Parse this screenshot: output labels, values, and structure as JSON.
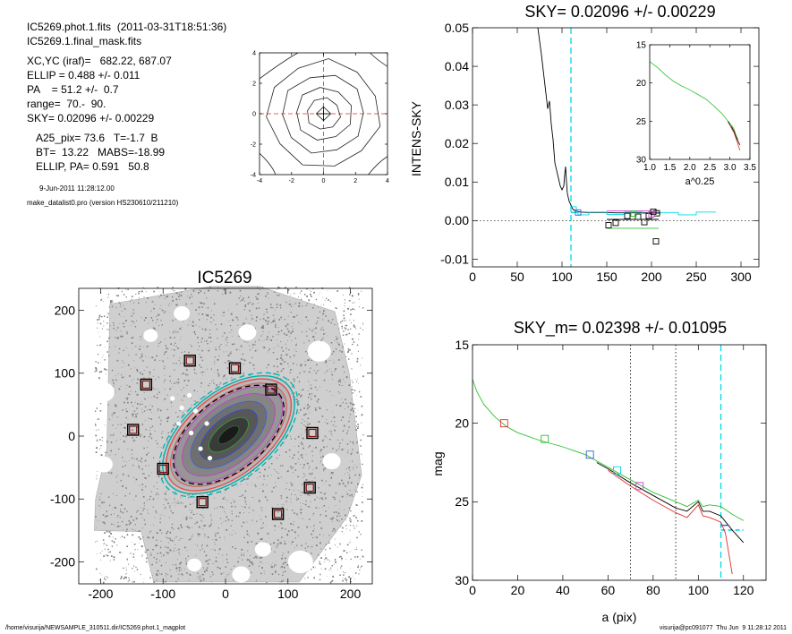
{
  "header": {
    "line1": "IC5269.phot.1.fits  (2011-03-31T18:51:36)",
    "line2": "IC5269.1.final_mask.fits",
    "xcyc": "XC,YC (iraf)=   682.22, 687.07",
    "ellip": "ELLIP = 0.488 +/- 0.011",
    "pa": "PA    = 51.2 +/-  0.7",
    "range": "range=  70.-  90.",
    "sky": "SKY= 0.02096 +/- 0.00229",
    "a25": "A25_pix= 73.6   T=-1.7  B",
    "bt": "BT=  13.22   MABS=-18.99",
    "ellip_pa": "ELLIP, PA= 0.591   50.8",
    "date": "9-Jun-2011 11:28:12.00",
    "program": "make_datalist0.pro (version HS230610/211210)"
  },
  "footer": {
    "left": "/home/visurija/NEWSAMPLE_310511.dir/IC5269.phot.1_magplot",
    "right": "visurija@pc091077  Thu Jun  9 11:28:12 2011"
  },
  "colors": {
    "cyan": "#00d8e8",
    "red": "#e0302a",
    "green": "#30c030",
    "blue": "#3060d0",
    "magenta": "#d040d0",
    "box": "#7a1010"
  },
  "chart_data": [
    {
      "id": "contour",
      "type": "contour",
      "xlim": [
        -4,
        4
      ],
      "ylim": [
        -4,
        4
      ],
      "xticks": [
        -4,
        -2,
        0,
        2,
        4
      ],
      "yticks": [
        -4,
        -2,
        0,
        2,
        4
      ],
      "contour_radii": [
        0.45,
        1.05,
        1.75,
        2.6,
        3.5
      ]
    },
    {
      "id": "sky_profile",
      "type": "line",
      "title": "SKY= 0.02096 +/- 0.00229",
      "ylabel": "INTENS-SKY",
      "xlim": [
        0,
        320
      ],
      "ylim": [
        -0.012,
        0.05
      ],
      "xticks": [
        0,
        50,
        100,
        150,
        200,
        250,
        300
      ],
      "yticks": [
        -0.01,
        0.0,
        0.01,
        0.02,
        0.03,
        0.04,
        0.05
      ],
      "ytick_labels": [
        "-0.01",
        "0.00",
        "0.01",
        "0.02",
        "0.03",
        "0.04",
        "0.05"
      ],
      "sky_line_x": 110,
      "series": [
        {
          "color": "black",
          "x": [
            73,
            77,
            81,
            84,
            86,
            88,
            90,
            92,
            94,
            96,
            98,
            100,
            102,
            103,
            104,
            105,
            106,
            107,
            108,
            110,
            112,
            115,
            120,
            130,
            140,
            150,
            160,
            175,
            190,
            205,
            210
          ],
          "y": [
            0.05,
            0.043,
            0.035,
            0.029,
            0.031,
            0.025,
            0.021,
            0.015,
            0.013,
            0.011,
            0.009,
            0.008,
            0.009,
            0.012,
            0.014,
            0.01,
            0.007,
            0.006,
            0.005,
            0.004,
            0.003,
            0.0025,
            0.0022,
            0.0021,
            0.0021,
            0.0021,
            0.002,
            0.002,
            0.002,
            0.002,
            0.002
          ]
        },
        {
          "color": "cyan",
          "x": [
            110,
            118,
            118,
            130,
            130,
            150,
            150,
            170,
            170,
            190,
            190,
            210,
            210,
            230,
            230,
            250,
            250,
            272
          ],
          "y": [
            0.002,
            0.002,
            0.0015,
            0.0015,
            0.0022,
            0.0022,
            0.0016,
            0.0016,
            0.0022,
            0.0022,
            0.0018,
            0.0018,
            0.0021,
            0.0021,
            0.0015,
            0.0015,
            0.0022,
            0.0022
          ]
        },
        {
          "color": "magenta",
          "x": [
            150,
            208
          ],
          "y": [
            0.0025,
            0.0025
          ]
        },
        {
          "color": "green",
          "x": [
            150,
            208
          ],
          "y": [
            -0.002,
            -0.002
          ]
        },
        {
          "color": "black",
          "x": [
            150,
            208
          ],
          "y": [
            0.0003,
            0.0003
          ]
        }
      ],
      "boxes": [
        {
          "color": "cyan",
          "x": 113,
          "y": 0.0029
        },
        {
          "color": "blue",
          "x": 118,
          "y": 0.0021
        },
        {
          "color": "black",
          "x": 152,
          "y": -0.0012
        },
        {
          "color": "black",
          "x": 160,
          "y": -0.0006
        },
        {
          "color": "black",
          "x": 173,
          "y": 0.0012
        },
        {
          "color": "black",
          "x": 185,
          "y": 0.001
        },
        {
          "color": "black",
          "x": 192,
          "y": -0.0004
        },
        {
          "color": "black",
          "x": 197,
          "y": 0.0012
        },
        {
          "color": "black",
          "x": 202,
          "y": 0.0023
        },
        {
          "color": "black",
          "x": 206,
          "y": 0.0019
        },
        {
          "color": "black",
          "x": 205,
          "y": -0.0054
        },
        {
          "color": "magenta",
          "x": 200,
          "y": 0.0016
        },
        {
          "color": "green",
          "x": 180,
          "y": 0.0018
        }
      ]
    },
    {
      "id": "sky_inset",
      "type": "line",
      "xlabel": "a^0.25",
      "xlim": [
        1.0,
        3.5
      ],
      "ylim": [
        15,
        30
      ],
      "y_inverted": true,
      "xticks": [
        1.0,
        1.5,
        2.0,
        2.5,
        3.0,
        3.5
      ],
      "xtick_labels": [
        "1.0",
        "1.5",
        "2.0",
        "2.5",
        "3.0",
        "3.5"
      ],
      "yticks": [
        15,
        20,
        25,
        30
      ],
      "series": [
        {
          "color": "green",
          "x": [
            1.0,
            1.2,
            1.4,
            1.6,
            1.8,
            2.0,
            2.2,
            2.4,
            2.6,
            2.8,
            2.95,
            3.05,
            3.1,
            3.15,
            3.2
          ],
          "y": [
            17.2,
            18.0,
            19.0,
            19.8,
            20.4,
            20.9,
            21.5,
            22.1,
            23.0,
            24.0,
            25.0,
            25.6,
            26.0,
            26.8,
            27.4
          ]
        },
        {
          "color": "black",
          "x": [
            2.95,
            3.0,
            3.05,
            3.1,
            3.15,
            3.2,
            3.25
          ],
          "y": [
            25.0,
            25.5,
            25.8,
            26.3,
            27.0,
            27.6,
            28.1
          ]
        },
        {
          "color": "red",
          "x": [
            3.0,
            3.05,
            3.1,
            3.15,
            3.2,
            3.25
          ],
          "y": [
            25.5,
            26.0,
            26.5,
            27.2,
            28.0,
            28.8
          ]
        }
      ]
    },
    {
      "id": "image",
      "type": "scatter",
      "title": "IC5269",
      "xlim": [
        -235,
        235
      ],
      "ylim": [
        -235,
        235
      ],
      "xticks": [
        -200,
        -100,
        0,
        100,
        200
      ],
      "yticks": [
        -200,
        -100,
        0,
        100,
        200
      ],
      "ellipse_pa_deg": 39,
      "ellipse_semi_axes": [
        [
          20,
          9
        ],
        [
          38,
          18
        ],
        [
          55,
          27
        ],
        [
          72,
          37
        ],
        [
          88,
          46
        ],
        [
          102,
          54
        ],
        [
          110,
          58
        ],
        [
          118,
          64
        ],
        [
          124,
          68
        ]
      ],
      "ellipse_colors": [
        "#2a6a2a",
        "#30a030",
        "#3050d0",
        "#4060d0",
        "#c040c0",
        "#c040c0",
        "#e05050",
        "#e05050",
        "#00b0b0"
      ],
      "sky_boxes": [
        [
          -148,
          10
        ],
        [
          -127,
          82
        ],
        [
          -57,
          120
        ],
        [
          15,
          108
        ],
        [
          73,
          74
        ],
        [
          139,
          5
        ],
        [
          135,
          -82
        ],
        [
          84,
          -124
        ],
        [
          -37,
          -105
        ],
        [
          -100,
          -52
        ]
      ]
    },
    {
      "id": "mag_profile",
      "type": "line",
      "title": "SKY_m=  0.02398 +/- 0.01095",
      "xlabel": "a (pix)",
      "ylabel": "mag",
      "xlim": [
        0,
        130
      ],
      "ylim": [
        15,
        30
      ],
      "y_inverted": true,
      "xticks": [
        0,
        20,
        40,
        60,
        80,
        100,
        120
      ],
      "yticks": [
        15,
        20,
        25,
        30
      ],
      "vlines_dotted": [
        70,
        90
      ],
      "vline_cyan": 110,
      "series": [
        {
          "color": "green",
          "x": [
            0,
            2,
            5,
            10,
            15,
            20,
            30,
            40,
            50,
            60,
            70,
            80,
            90,
            95,
            100,
            102,
            105,
            110,
            115,
            120
          ],
          "y": [
            17.2,
            18.0,
            18.8,
            19.6,
            20.2,
            20.6,
            21.1,
            21.5,
            22.0,
            22.8,
            23.6,
            24.4,
            25.0,
            25.3,
            24.9,
            25.3,
            25.2,
            25.3,
            25.8,
            26.2
          ]
        },
        {
          "color": "black",
          "x": [
            55,
            60,
            70,
            80,
            90,
            95,
            100,
            102,
            105,
            110,
            115,
            120
          ],
          "y": [
            22.5,
            22.9,
            23.8,
            24.6,
            25.4,
            25.6,
            25.0,
            25.6,
            25.6,
            25.9,
            26.8,
            27.6
          ]
        },
        {
          "color": "red",
          "x": [
            60,
            70,
            80,
            90,
            95,
            100,
            102,
            105,
            110,
            112,
            115
          ],
          "y": [
            23.0,
            24.0,
            24.9,
            25.7,
            26.0,
            25.2,
            25.9,
            26.0,
            26.3,
            27.0,
            29.6
          ]
        }
      ],
      "boxes": [
        {
          "color": "red",
          "x": 14,
          "y": 20.0
        },
        {
          "color": "green",
          "x": 32,
          "y": 21.0
        },
        {
          "color": "blue",
          "x": 52,
          "y": 22.0
        },
        {
          "color": "cyan",
          "x": 64,
          "y": 23.0
        },
        {
          "color": "magenta",
          "x": 74,
          "y": 24.0
        }
      ]
    }
  ]
}
